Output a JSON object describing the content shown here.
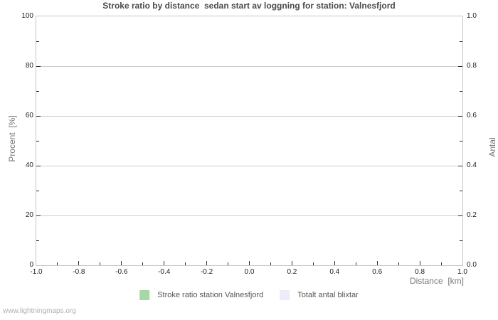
{
  "colors": {
    "gridline": "#cccccc",
    "plot_border": "#c6c6c6",
    "tick": "#2b2b2b",
    "title_text": "#4a4a4a",
    "axis_title_text": "#777777",
    "tick_label_text": "#1f1f1f",
    "legend_text": "#575757",
    "watermark_text": "#b0b0b0"
  },
  "chart_data": {
    "type": "line",
    "title": "Stroke ratio by distance  sedan start av loggning for station: Valnesfjord",
    "xlabel": "Distance  [km]",
    "ylabel_left": "Procent  [%]",
    "ylabel_right": "Antal",
    "xlim": [
      -1.0,
      1.0
    ],
    "ylim_left": [
      0,
      100
    ],
    "ylim_right": [
      0.0,
      1.0
    ],
    "x_tick_labels": [
      "-1.0",
      "-0.8",
      "-0.6",
      "-0.4",
      "-0.2",
      "0.0",
      "0.2",
      "0.4",
      "0.6",
      "0.8",
      "1.0"
    ],
    "x_minor_ticks": [
      -0.9,
      -0.7,
      -0.5,
      -0.3,
      -0.1,
      0.1,
      0.3,
      0.5,
      0.7,
      0.9
    ],
    "y_left_tick_labels": [
      "0",
      "20",
      "40",
      "60",
      "80",
      "100"
    ],
    "y_left_minor_ticks": [
      10,
      30,
      50,
      70,
      90
    ],
    "y_right_tick_labels": [
      "0.0",
      "0.2",
      "0.4",
      "0.6",
      "0.8",
      "1.0"
    ],
    "y_right_minor_ticks": [
      0.1,
      0.3,
      0.5,
      0.7,
      0.9
    ],
    "grid": "horizontal-major-only",
    "legend_position": "bottom-center",
    "series": [
      {
        "label": "Stroke ratio station Valnesfjord",
        "color": "#a6d7a6",
        "values": []
      },
      {
        "label": "Totalt antal blixtar",
        "color": "#ededf9",
        "values": []
      }
    ],
    "watermark": "www.lightningmaps.org"
  }
}
